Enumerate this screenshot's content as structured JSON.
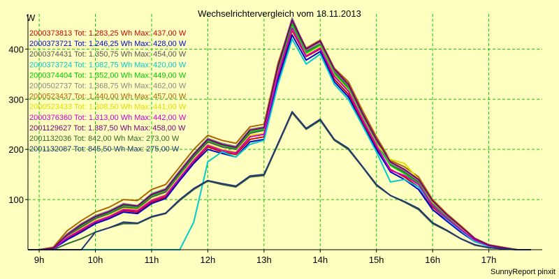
{
  "chart_data": {
    "type": "line",
    "title": "Wechselrichtervergleich vom 18.11.2013",
    "ylabel": "W",
    "xlabel": "",
    "footer": "SunnyReport pinxit",
    "ylim": [
      0,
      470
    ],
    "xlim": [
      8.8,
      17.95
    ],
    "yticks": [
      100,
      200,
      300,
      400
    ],
    "xticks": [
      9,
      10,
      11,
      12,
      13,
      14,
      15,
      16,
      17
    ],
    "xtick_labels": [
      "9h",
      "10h",
      "11h",
      "12h",
      "13h",
      "14h",
      "15h",
      "16h",
      "17h"
    ],
    "grid": true,
    "legend_position": "top-left",
    "x": [
      8.8,
      9.0,
      9.25,
      9.5,
      9.75,
      10.0,
      10.25,
      10.5,
      10.75,
      11.0,
      11.25,
      11.5,
      11.75,
      12.0,
      12.25,
      12.5,
      12.75,
      13.0,
      13.25,
      13.5,
      13.75,
      14.0,
      14.25,
      14.5,
      14.75,
      15.0,
      15.25,
      15.5,
      15.75,
      16.0,
      16.25,
      16.5,
      16.75,
      17.0,
      17.25,
      17.5,
      17.75
    ],
    "series": [
      {
        "name": "2000373813",
        "label": "2000373813 Tot: 1.283,25 Wh Max: 437,00 W",
        "color": "#cc0000",
        "values": [
          0,
          0,
          2,
          22,
          38,
          55,
          65,
          78,
          75,
          95,
          105,
          140,
          175,
          205,
          195,
          190,
          220,
          225,
          345,
          437,
          385,
          400,
          340,
          310,
          255,
          205,
          160,
          145,
          125,
          85,
          60,
          38,
          18,
          8,
          4,
          0,
          0
        ]
      },
      {
        "name": "2000373721",
        "label": "2000373721 Tot: 1.246,25 Wh Max: 428,00 W",
        "color": "#0000cc",
        "values": [
          0,
          0,
          2,
          20,
          35,
          52,
          62,
          75,
          72,
          92,
          102,
          138,
          172,
          200,
          192,
          185,
          215,
          220,
          338,
          428,
          378,
          395,
          335,
          305,
          250,
          200,
          155,
          140,
          120,
          80,
          57,
          35,
          16,
          7,
          3,
          0,
          0
        ]
      },
      {
        "name": "2000374431",
        "label": "2000374431 Tot: 1.350,75 Wh Max: 454,00 W",
        "color": "#555555",
        "values": [
          0,
          0,
          3,
          28,
          45,
          62,
          72,
          85,
          82,
          105,
          115,
          150,
          185,
          215,
          205,
          200,
          232,
          238,
          360,
          454,
          395,
          410,
          355,
          325,
          268,
          215,
          170,
          155,
          135,
          92,
          65,
          42,
          20,
          9,
          4,
          0,
          0
        ]
      },
      {
        "name": "2000373724",
        "label": "2000373724 Tot: 1.082,75 Wh Max: 420,00 W",
        "color": "#00cccc",
        "values": [
          0,
          0,
          0,
          0,
          0,
          0,
          0,
          0,
          0,
          0,
          0,
          0,
          55,
          175,
          195,
          185,
          210,
          218,
          330,
          420,
          370,
          390,
          330,
          300,
          248,
          195,
          135,
          140,
          125,
          88,
          60,
          38,
          16,
          7,
          3,
          0,
          0
        ]
      },
      {
        "name": "2000374404",
        "label": "2000374404 Tot: 1.352,00 Wh Max: 449,00 W",
        "color": "#00cc00",
        "values": [
          0,
          0,
          3,
          30,
          48,
          65,
          74,
          88,
          85,
          108,
          118,
          152,
          188,
          218,
          208,
          202,
          235,
          240,
          362,
          449,
          392,
          408,
          352,
          322,
          265,
          212,
          168,
          152,
          132,
          90,
          63,
          40,
          19,
          8,
          4,
          0,
          0
        ]
      },
      {
        "name": "2000502737",
        "label": "2000502737 Tot: 1.368,75 Wh Max: 462,00 W",
        "color": "#888888",
        "values": [
          0,
          0,
          4,
          32,
          52,
          68,
          78,
          92,
          88,
          112,
          122,
          158,
          192,
          222,
          212,
          206,
          240,
          245,
          368,
          462,
          398,
          414,
          358,
          328,
          270,
          218,
          172,
          158,
          138,
          95,
          68,
          44,
          21,
          9,
          4,
          0,
          0
        ]
      },
      {
        "name": "2000523437",
        "label": "2000523437 Tot: 1.440,00 Wh Max: 457,00 W",
        "color": "#aa6600",
        "values": [
          0,
          0,
          5,
          38,
          58,
          75,
          85,
          100,
          98,
          120,
          130,
          165,
          200,
          228,
          218,
          212,
          245,
          250,
          372,
          457,
          402,
          418,
          362,
          335,
          278,
          225,
          178,
          165,
          145,
          100,
          72,
          48,
          23,
          10,
          5,
          0,
          0
        ]
      },
      {
        "name": "2000523433",
        "label": "2000523433 Tot: 1.308,50 Wh Max: 441,00 W",
        "color": "#dddd00",
        "values": [
          0,
          0,
          2,
          25,
          42,
          58,
          68,
          82,
          80,
          100,
          110,
          145,
          180,
          210,
          200,
          195,
          228,
          232,
          352,
          441,
          388,
          404,
          348,
          318,
          262,
          210,
          180,
          172,
          140,
          95,
          70,
          45,
          21,
          9,
          4,
          0,
          0
        ]
      },
      {
        "name": "2000376360",
        "label": "2000376360 Tot: 1.313,00 Wh Max: 442,00 W",
        "color": "#cc00cc",
        "values": [
          0,
          0,
          2,
          24,
          40,
          56,
          66,
          80,
          78,
          98,
          108,
          143,
          178,
          208,
          198,
          193,
          225,
          230,
          350,
          442,
          386,
          402,
          346,
          316,
          260,
          208,
          158,
          148,
          130,
          88,
          62,
          40,
          19,
          8,
          4,
          0,
          0
        ]
      },
      {
        "name": "2001129627",
        "label": "2001129627 Tot: 1.387,50 Wh Max: 458,00 W",
        "color": "#770077",
        "values": [
          0,
          0,
          3,
          30,
          50,
          66,
          76,
          90,
          87,
          110,
          120,
          155,
          190,
          220,
          210,
          204,
          238,
          243,
          366,
          458,
          400,
          416,
          360,
          330,
          272,
          220,
          175,
          160,
          140,
          97,
          70,
          46,
          22,
          9,
          4,
          0,
          0
        ]
      },
      {
        "name": "2001132036",
        "label": "2001132036 Tot: 842,00 Wh Max: 273,00 W",
        "color": "#336633",
        "values": [
          0,
          0,
          0,
          12,
          22,
          35,
          44,
          52,
          52,
          65,
          72,
          98,
          120,
          137,
          130,
          125,
          145,
          148,
          210,
          273,
          240,
          258,
          218,
          200,
          165,
          128,
          108,
          95,
          80,
          52,
          38,
          22,
          9,
          4,
          2,
          0,
          0
        ]
      },
      {
        "name": "2001132087",
        "label": "2001132087 Tot: 845,50 Wh Max: 275,00 W",
        "color": "#223377",
        "values": [
          0,
          0,
          0,
          0,
          0,
          35,
          44,
          55,
          53,
          66,
          73,
          100,
          122,
          138,
          132,
          127,
          147,
          150,
          212,
          275,
          242,
          260,
          220,
          202,
          166,
          130,
          108,
          96,
          82,
          54,
          39,
          22,
          10,
          4,
          2,
          0,
          0
        ]
      }
    ]
  }
}
